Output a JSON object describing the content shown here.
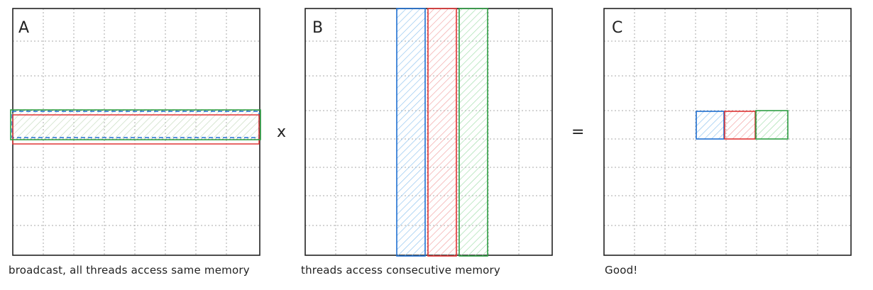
{
  "panels": [
    {
      "id": "A",
      "label": "A",
      "caption": "broadcast, all threads access same memory"
    },
    {
      "id": "B",
      "label": "B",
      "caption": "threads access consecutive memory"
    },
    {
      "id": "C",
      "label": "C",
      "caption": "Good!"
    }
  ],
  "operators": {
    "multiply": "x",
    "equals": "="
  },
  "colors": {
    "blue": "#1f6fd1",
    "red": "#e03535",
    "green": "#2f9e44",
    "blue_fill": "#a5d0f5",
    "red_fill": "#f7b2b2",
    "green_fill": "#b8e8bf",
    "grid": "#aaaaaa",
    "frame": "#222222"
  }
}
